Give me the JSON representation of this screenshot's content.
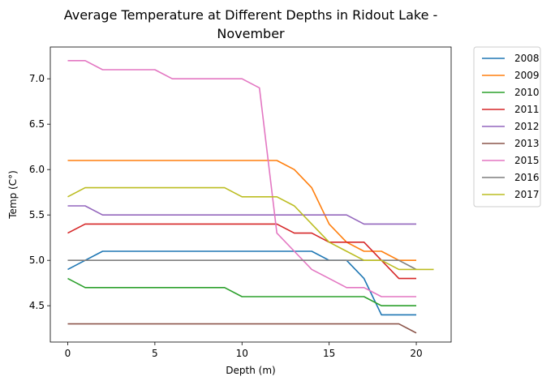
{
  "chart_data": {
    "type": "line",
    "title_line1": "Average Temperature at Different Depths in Ridout Lake -",
    "title_line2": "November",
    "xlabel": "Depth (m)",
    "ylabel": "Temp (C°)",
    "xlim": [
      -1,
      22
    ],
    "ylim": [
      4.1,
      7.35
    ],
    "xticks": [
      0,
      5,
      10,
      15,
      20
    ],
    "xtick_labels": [
      "0",
      "5",
      "10",
      "15",
      "20"
    ],
    "yticks": [
      4.5,
      5.0,
      5.5,
      6.0,
      6.5,
      7.0
    ],
    "ytick_labels": [
      "4.5",
      "5.0",
      "5.5",
      "6.0",
      "6.5",
      "7.0"
    ],
    "grid": false,
    "legend_position": "outside-upper-right",
    "series": [
      {
        "name": "2008",
        "color": "#1f77b4",
        "x": [
          0,
          1,
          2,
          3,
          4,
          5,
          6,
          7,
          8,
          9,
          10,
          11,
          12,
          13,
          14,
          15,
          16,
          17,
          18,
          19,
          20
        ],
        "y": [
          4.9,
          5.0,
          5.1,
          5.1,
          5.1,
          5.1,
          5.1,
          5.1,
          5.1,
          5.1,
          5.1,
          5.1,
          5.1,
          5.1,
          5.1,
          5.0,
          5.0,
          4.8,
          4.4,
          4.4,
          4.4
        ]
      },
      {
        "name": "2009",
        "color": "#ff7f0e",
        "x": [
          0,
          1,
          2,
          3,
          4,
          5,
          6,
          7,
          8,
          9,
          10,
          11,
          12,
          13,
          14,
          15,
          16,
          17,
          18,
          19,
          20
        ],
        "y": [
          6.1,
          6.1,
          6.1,
          6.1,
          6.1,
          6.1,
          6.1,
          6.1,
          6.1,
          6.1,
          6.1,
          6.1,
          6.1,
          6.0,
          5.8,
          5.4,
          5.2,
          5.1,
          5.1,
          5.0,
          5.0
        ]
      },
      {
        "name": "2010",
        "color": "#2ca02c",
        "x": [
          0,
          1,
          2,
          3,
          4,
          5,
          6,
          7,
          8,
          9,
          10,
          11,
          12,
          13,
          14,
          15,
          16,
          17,
          18,
          19,
          20
        ],
        "y": [
          4.8,
          4.7,
          4.7,
          4.7,
          4.7,
          4.7,
          4.7,
          4.7,
          4.7,
          4.7,
          4.6,
          4.6,
          4.6,
          4.6,
          4.6,
          4.6,
          4.6,
          4.6,
          4.5,
          4.5,
          4.5
        ]
      },
      {
        "name": "2011",
        "color": "#d62728",
        "x": [
          0,
          1,
          2,
          3,
          4,
          5,
          6,
          7,
          8,
          9,
          10,
          11,
          12,
          13,
          14,
          15,
          16,
          17,
          18,
          19,
          20
        ],
        "y": [
          5.3,
          5.4,
          5.4,
          5.4,
          5.4,
          5.4,
          5.4,
          5.4,
          5.4,
          5.4,
          5.4,
          5.4,
          5.4,
          5.3,
          5.3,
          5.2,
          5.2,
          5.2,
          5.0,
          4.8,
          4.8
        ]
      },
      {
        "name": "2012",
        "color": "#9467bd",
        "x": [
          0,
          1,
          2,
          3,
          4,
          5,
          6,
          7,
          8,
          9,
          10,
          11,
          12,
          13,
          14,
          15,
          16,
          17,
          18,
          19,
          20
        ],
        "y": [
          5.6,
          5.6,
          5.5,
          5.5,
          5.5,
          5.5,
          5.5,
          5.5,
          5.5,
          5.5,
          5.5,
          5.5,
          5.5,
          5.5,
          5.5,
          5.5,
          5.5,
          5.4,
          5.4,
          5.4,
          5.4
        ]
      },
      {
        "name": "2013",
        "color": "#8c564b",
        "x": [
          0,
          1,
          2,
          3,
          4,
          5,
          6,
          7,
          8,
          9,
          10,
          11,
          12,
          13,
          14,
          15,
          16,
          17,
          18,
          19,
          20
        ],
        "y": [
          4.3,
          4.3,
          4.3,
          4.3,
          4.3,
          4.3,
          4.3,
          4.3,
          4.3,
          4.3,
          4.3,
          4.3,
          4.3,
          4.3,
          4.3,
          4.3,
          4.3,
          4.3,
          4.3,
          4.3,
          4.2
        ]
      },
      {
        "name": "2015",
        "color": "#e377c2",
        "x": [
          0,
          1,
          2,
          3,
          4,
          5,
          6,
          7,
          8,
          9,
          10,
          11,
          12,
          13,
          14,
          15,
          16,
          17,
          18,
          19,
          20
        ],
        "y": [
          7.2,
          7.2,
          7.1,
          7.1,
          7.1,
          7.1,
          7.0,
          7.0,
          7.0,
          7.0,
          7.0,
          6.9,
          5.3,
          5.1,
          4.9,
          4.8,
          4.7,
          4.7,
          4.6,
          4.6,
          4.6
        ]
      },
      {
        "name": "2016",
        "color": "#7f7f7f",
        "x": [
          0,
          1,
          2,
          3,
          4,
          5,
          6,
          7,
          8,
          9,
          10,
          11,
          12,
          13,
          14,
          15,
          16,
          17,
          18,
          19,
          20
        ],
        "y": [
          5.0,
          5.0,
          5.0,
          5.0,
          5.0,
          5.0,
          5.0,
          5.0,
          5.0,
          5.0,
          5.0,
          5.0,
          5.0,
          5.0,
          5.0,
          5.0,
          5.0,
          5.0,
          5.0,
          5.0,
          4.9
        ]
      },
      {
        "name": "2017",
        "color": "#bcbd22",
        "x": [
          0,
          1,
          2,
          3,
          4,
          5,
          6,
          7,
          8,
          9,
          10,
          11,
          12,
          13,
          14,
          15,
          16,
          17,
          18,
          19,
          20,
          21
        ],
        "y": [
          5.7,
          5.8,
          5.8,
          5.8,
          5.8,
          5.8,
          5.8,
          5.8,
          5.8,
          5.8,
          5.7,
          5.7,
          5.7,
          5.6,
          5.4,
          5.2,
          5.1,
          5.0,
          5.0,
          4.9,
          4.9,
          4.9
        ]
      }
    ]
  }
}
